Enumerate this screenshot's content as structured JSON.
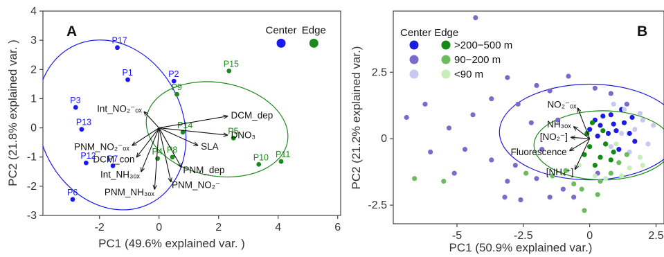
{
  "chart_data": [
    {
      "type": "scatter",
      "panel_label": "A",
      "xlabel": "PC1 (49.6% explained var. )",
      "ylabel": "PC2 (21.8% explained var. )",
      "xlim": [
        -3.9,
        6.1
      ],
      "ylim": [
        -3.0,
        4.0
      ],
      "x_ticks": [
        -2,
        0,
        2,
        4,
        6
      ],
      "y_ticks": [
        -3,
        -2,
        -1,
        0,
        1,
        2,
        3,
        4
      ],
      "legend": {
        "title": "",
        "entries": [
          {
            "name": "Center",
            "color": "#1a1aee",
            "x": 4.1,
            "y": 2.9
          },
          {
            "name": "Edge",
            "color": "#1e8a1e",
            "x": 5.2,
            "y": 2.9
          }
        ],
        "placement": "top-right"
      },
      "series": [
        {
          "name": "Center",
          "color": "#1a1aee",
          "points": [
            {
              "label": "P17",
              "x": -1.4,
              "y": 2.75
            },
            {
              "label": "P1",
              "x": -1.05,
              "y": 1.65
            },
            {
              "label": "P2",
              "x": 0.5,
              "y": 1.6
            },
            {
              "label": "P3",
              "x": -2.8,
              "y": 0.7
            },
            {
              "label": "P13",
              "x": -2.6,
              "y": -0.05
            },
            {
              "label": "P12",
              "x": -2.45,
              "y": -1.2
            },
            {
              "label": "P7",
              "x": -1.55,
              "y": -1.3
            },
            {
              "label": "P6",
              "x": -2.9,
              "y": -2.45
            }
          ]
        },
        {
          "name": "Edge",
          "color": "#1e8a1e",
          "points": [
            {
              "label": "P15",
              "x": 2.35,
              "y": 1.95
            },
            {
              "label": "P9",
              "x": 0.6,
              "y": 1.15
            },
            {
              "label": "P14",
              "x": 0.8,
              "y": -0.15
            },
            {
              "label": "P5",
              "x": 2.5,
              "y": -0.35
            },
            {
              "label": "P10",
              "x": 3.35,
              "y": -1.25
            },
            {
              "label": "P11",
              "x": 4.1,
              "y": -1.15
            },
            {
              "label": "P4",
              "x": -0.05,
              "y": -1.05
            },
            {
              "label": "P8",
              "x": 0.45,
              "y": -1.0
            }
          ]
        }
      ],
      "ellipses": [
        {
          "group": "Center",
          "cx": -1.6,
          "cy": 0.1,
          "rx": 2.4,
          "ry": 3.0,
          "angle_deg": 25
        },
        {
          "group": "Edge",
          "cx": 1.95,
          "cy": -0.05,
          "rx": 2.4,
          "ry": 1.6,
          "angle_deg": -10
        }
      ],
      "loadings": [
        {
          "label": "DCM_dep",
          "x": 2.3,
          "y": 0.4
        },
        {
          "label": "DNO₃",
          "x": 2.3,
          "y": -0.25
        },
        {
          "label": "SLA",
          "x": 1.3,
          "y": -0.6
        },
        {
          "label": "PNM_dep",
          "x": 0.75,
          "y": -1.35
        },
        {
          "label": "PNM_NO₂⁻",
          "x": 0.4,
          "y": -1.85
        },
        {
          "label": "Int_NO₂⁻ₒₓ",
          "x": -0.5,
          "y": 0.55
        },
        {
          "label": "PNM_NO₂⁻ₒₓ",
          "x": -0.9,
          "y": -0.6
        },
        {
          "label": "DCM_con",
          "x": -0.75,
          "y": -1.0
        },
        {
          "label": "Int_NH₃ₒₓ",
          "x": -0.6,
          "y": -1.5
        },
        {
          "label": "PNM_NH₃ₒₓ",
          "x": -0.15,
          "y": -2.1
        }
      ]
    },
    {
      "type": "scatter",
      "panel_label": "B",
      "xlabel": "PC1 (50.9% explained var.)",
      "ylabel": "PC2 (21.2% explained var.)",
      "xlim": [
        -7.4,
        2.8
      ],
      "ylim": [
        -3.2,
        4.8
      ],
      "x_ticks": [
        -5.0,
        -2.5,
        0.0,
        2.5
      ],
      "y_ticks": [
        -2.5,
        0.0,
        2.5
      ],
      "legend": {
        "header": "Center Edge",
        "placement": "top-left",
        "rows": [
          {
            "label": ">200−500 m",
            "center_color": "#1c1ce0",
            "edge_color": "#138a13"
          },
          {
            "label": "90−200 m",
            "center_color": "#7b6bc9",
            "edge_color": "#6dbb5f"
          },
          {
            "label": "<90 m",
            "center_color": "#c8c8f0",
            "edge_color": "#c7eeba"
          }
        ]
      },
      "ellipses": [
        {
          "group": "Center",
          "cx": 0.0,
          "cy": 0.25,
          "rx": 3.4,
          "ry": 1.8,
          "angle_deg": 0
        },
        {
          "group": "Edge",
          "cx": 0.5,
          "cy": -0.25,
          "rx": 2.6,
          "ry": 1.3,
          "angle_deg": 0
        }
      ],
      "loadings": [
        {
          "label": "NO₂⁻ₒₓ",
          "x": -0.45,
          "y": 1.15
        },
        {
          "label": "NH₃ₒₓ",
          "x": -0.6,
          "y": 0.45
        },
        {
          "label": "[NO₂⁻]",
          "x": -0.7,
          "y": 0.05
        },
        {
          "label": "Fluorescence",
          "x": -0.75,
          "y": -0.45
        },
        {
          "label": "[NH₄⁺]",
          "x": -0.55,
          "y": -1.15
        }
      ],
      "series": [
        {
          "name": "Center >200−500 m",
          "color": "#1c1ce0",
          "points": [
            [
              0.2,
              0.7
            ],
            [
              0.4,
              0.5
            ],
            [
              0.8,
              0.9
            ],
            [
              1.0,
              0.3
            ],
            [
              1.3,
              0.6
            ],
            [
              0.6,
              -0.2
            ],
            [
              1.1,
              -0.4
            ],
            [
              0.3,
              0.1
            ],
            [
              1.5,
              0.2
            ],
            [
              0.9,
              0.55
            ],
            [
              1.7,
              -0.1
            ],
            [
              0.5,
              0.85
            ],
            [
              1.2,
              1.1
            ],
            [
              0.0,
              0.35
            ],
            [
              1.6,
              0.8
            ],
            [
              0.7,
              0.2
            ]
          ]
        },
        {
          "name": "Center 90−200 m",
          "color": "#7b6bc9",
          "points": [
            [
              -4.3,
              4.55
            ],
            [
              -3.1,
              2.3
            ],
            [
              -2.0,
              2.0
            ],
            [
              -3.7,
              1.5
            ],
            [
              -2.7,
              1.3
            ],
            [
              -1.5,
              1.8
            ],
            [
              -4.4,
              0.9
            ],
            [
              -5.3,
              0.4
            ],
            [
              -6.2,
              1.3
            ],
            [
              -6.0,
              -0.5
            ],
            [
              -6.9,
              0.8
            ],
            [
              -4.7,
              -0.4
            ],
            [
              -3.7,
              -0.8
            ],
            [
              -3.1,
              -1.6
            ],
            [
              -2.8,
              -1.0
            ],
            [
              -5.1,
              -1.3
            ],
            [
              -3.2,
              -2.2
            ],
            [
              -1.5,
              -2.2
            ],
            [
              -2.6,
              -2.3
            ],
            [
              -1.0,
              -1.9
            ],
            [
              -0.8,
              2.35
            ],
            [
              0.2,
              1.9
            ],
            [
              0.8,
              1.7
            ],
            [
              -1.2,
              0.7
            ],
            [
              -2.2,
              0.6
            ],
            [
              -1.8,
              -0.4
            ],
            [
              -0.6,
              -2.2
            ],
            [
              0.3,
              -1.3
            ],
            [
              -2.0,
              -1.5
            ],
            [
              1.4,
              1.3
            ]
          ]
        },
        {
          "name": "Center <90 m",
          "color": "#c8c8f0",
          "points": [
            [
              1.3,
              1.1
            ],
            [
              2.0,
              0.7
            ],
            [
              1.7,
              0.35
            ],
            [
              1.2,
              0.2
            ],
            [
              2.2,
              -0.2
            ],
            [
              1.9,
              0.95
            ],
            [
              0.8,
              -0.3
            ],
            [
              2.4,
              0.5
            ],
            [
              1.5,
              -0.5
            ],
            [
              0.9,
              1.3
            ]
          ]
        },
        {
          "name": "Edge >200−500 m",
          "color": "#138a13",
          "points": [
            [
              0.0,
              -0.3
            ],
            [
              0.5,
              0.3
            ],
            [
              -0.1,
              0.2
            ],
            [
              0.4,
              -0.7
            ],
            [
              0.2,
              -1.0
            ],
            [
              0.8,
              -0.8
            ],
            [
              -0.2,
              -0.6
            ],
            [
              0.6,
              -0.2
            ],
            [
              0.1,
              0.6
            ],
            [
              0.9,
              -0.5
            ]
          ]
        },
        {
          "name": "Edge 90−200 m",
          "color": "#6dbb5f",
          "points": [
            [
              -5.5,
              -1.6
            ],
            [
              -6.6,
              -1.5
            ],
            [
              -0.2,
              -2.7
            ],
            [
              0.3,
              -2.1
            ],
            [
              -0.6,
              -1.7
            ],
            [
              0.8,
              -1.3
            ],
            [
              -0.9,
              -1.2
            ],
            [
              0.4,
              -1.6
            ],
            [
              -1.4,
              -1.4
            ],
            [
              -2.4,
              -1.3
            ],
            [
              1.1,
              -0.9
            ],
            [
              -0.3,
              -1.9
            ],
            [
              1.4,
              -0.6
            ]
          ]
        },
        {
          "name": "Edge <90 m",
          "color": "#c7eeba",
          "points": [
            [
              1.0,
              -0.2
            ],
            [
              1.5,
              -1.1
            ],
            [
              0.6,
              -1.5
            ],
            [
              1.9,
              -0.7
            ],
            [
              0.2,
              -1.4
            ],
            [
              1.2,
              -1.4
            ],
            [
              2.0,
              -1.0
            ],
            [
              -0.4,
              -1.0
            ]
          ]
        }
      ]
    }
  ]
}
